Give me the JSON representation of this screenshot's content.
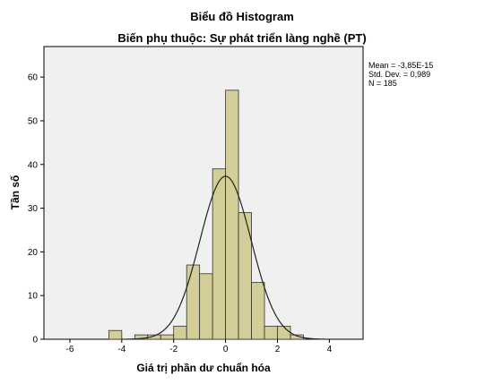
{
  "chart_data": {
    "type": "bar",
    "title": "Biểu đồ Histogram",
    "subtitle": "Biến phụ thuộc: Sự phát triển làng nghề (PT)",
    "xlabel": "Giá trị phần dư chuẩn hóa",
    "ylabel": "Tần số",
    "xlim": [
      -7,
      5.3
    ],
    "ylim": [
      0,
      67
    ],
    "xticks": [
      -6,
      -4,
      -2,
      0,
      2,
      4
    ],
    "yticks": [
      0,
      10,
      20,
      30,
      40,
      50,
      60
    ],
    "bin_width": 0.5,
    "bins": [
      {
        "start": -4.5,
        "count": 2
      },
      {
        "start": -3.5,
        "count": 1
      },
      {
        "start": -3.0,
        "count": 1
      },
      {
        "start": -2.5,
        "count": 1
      },
      {
        "start": -2.0,
        "count": 3
      },
      {
        "start": -1.5,
        "count": 17
      },
      {
        "start": -1.0,
        "count": 15
      },
      {
        "start": -0.5,
        "count": 39
      },
      {
        "start": 0.0,
        "count": 57
      },
      {
        "start": 0.5,
        "count": 29
      },
      {
        "start": 1.0,
        "count": 13
      },
      {
        "start": 1.5,
        "count": 3
      },
      {
        "start": 2.0,
        "count": 3
      },
      {
        "start": 2.5,
        "count": 1
      }
    ],
    "normal_curve": {
      "mean": -3.85e-15,
      "sd": 0.989,
      "n": 185
    },
    "stats": {
      "mean_label": "Mean = -3,85E-15",
      "sd_label": "Std. Dev. = 0,989",
      "n_label": "N = 185"
    },
    "colors": {
      "plot_background": "#f0f0f0",
      "bar_fill": "#d3ce97",
      "bar_stroke": "#333333",
      "curve": "#222222"
    },
    "grid": false,
    "legend": "top-right"
  }
}
